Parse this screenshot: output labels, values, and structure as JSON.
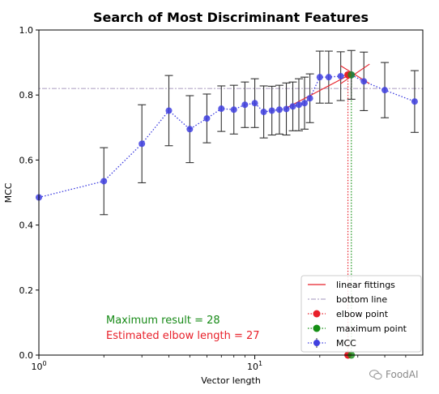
{
  "chart_data": {
    "type": "line",
    "title": "Search of Most Discriminant Features",
    "xlabel": "Vector length",
    "ylabel": "MCC",
    "xscale": "log",
    "xlim": [
      1,
      60
    ],
    "ylim": [
      0,
      1.0
    ],
    "x_major_ticks": [
      1,
      10
    ],
    "x_major_tick_labels": [
      "10^0",
      "10^1"
    ],
    "y_ticks": [
      0.0,
      0.2,
      0.4,
      0.6,
      0.8,
      1.0
    ],
    "y_tick_labels": [
      "0.0",
      "0.2",
      "0.4",
      "0.6",
      "0.8",
      "1.0"
    ],
    "grid": false,
    "legend_position": "lower right",
    "series": [
      {
        "name": "MCC",
        "style": "dotted-blue-with-markers-and-errorbars",
        "color": "#1f1fdb",
        "x": [
          1,
          2,
          3,
          4,
          5,
          6,
          7,
          8,
          9,
          10,
          11,
          12,
          13,
          14,
          15,
          16,
          17,
          18,
          20,
          22,
          25,
          28,
          32,
          40,
          55
        ],
        "y": [
          0.485,
          0.535,
          0.65,
          0.752,
          0.695,
          0.728,
          0.758,
          0.755,
          0.77,
          0.775,
          0.748,
          0.752,
          0.755,
          0.757,
          0.765,
          0.77,
          0.775,
          0.79,
          0.855,
          0.855,
          0.858,
          0.862,
          0.842,
          0.815,
          0.78
        ],
        "err": [
          0.0,
          0.103,
          0.12,
          0.108,
          0.103,
          0.075,
          0.07,
          0.075,
          0.07,
          0.075,
          0.08,
          0.075,
          0.075,
          0.08,
          0.075,
          0.08,
          0.08,
          0.075,
          0.08,
          0.08,
          0.075,
          0.075,
          0.09,
          0.085,
          0.095
        ]
      },
      {
        "name": "linear fittings",
        "color": "#e8202a",
        "segments": [
          {
            "x": [
              14,
              28
            ],
            "y": [
              0.76,
              0.865
            ]
          },
          {
            "x": [
              25,
              34
            ],
            "y": [
              0.89,
              0.835
            ]
          },
          {
            "x": [
              25,
              34
            ],
            "y": [
              0.835,
              0.895
            ]
          }
        ]
      },
      {
        "name": "bottom line",
        "color": "#b5a9c9",
        "y": 0.82,
        "x": [
          1,
          60
        ]
      },
      {
        "name": "elbow point",
        "color": "#e8202a",
        "x": 27,
        "y": 0.862
      },
      {
        "name": "maximum point",
        "color": "#158f15",
        "x": 28,
        "y": 0.862
      }
    ],
    "annotations": [
      {
        "text": "Maximum result = 28",
        "color": "#178a17"
      },
      {
        "text": "Estimated elbow length = 27",
        "color": "#e8202a"
      }
    ]
  },
  "watermark": {
    "text": "FoodAI"
  }
}
